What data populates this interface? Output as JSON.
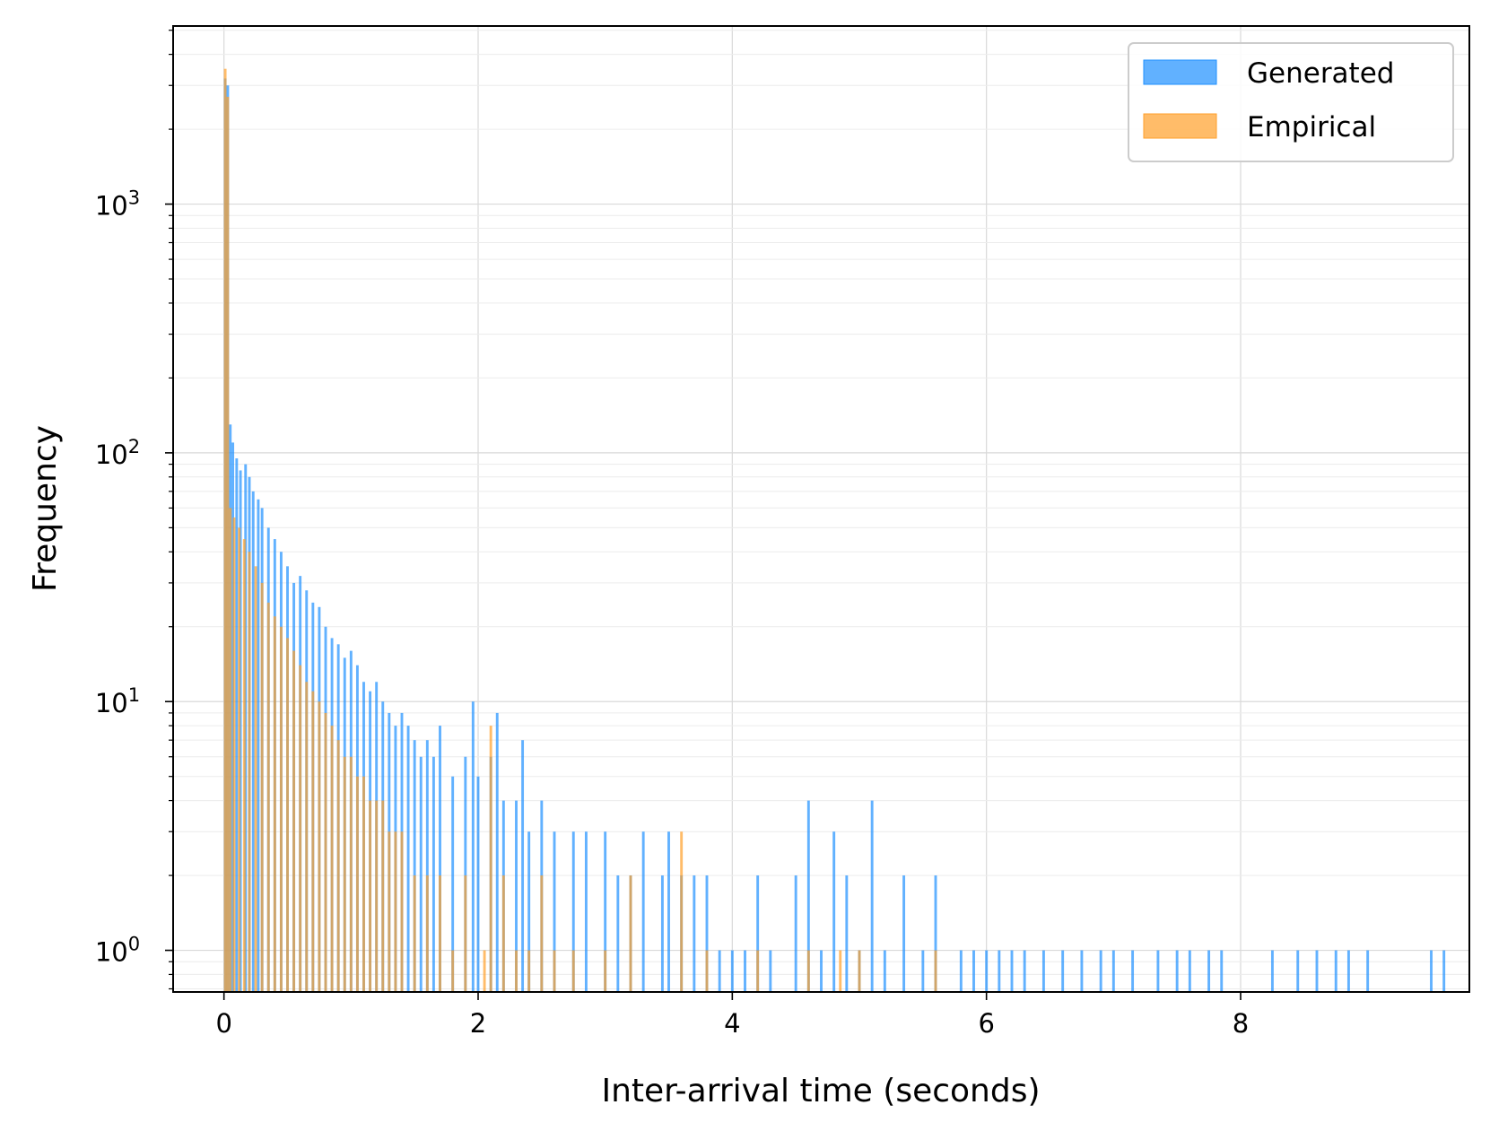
{
  "chart_data": {
    "type": "bar",
    "title": "",
    "xlabel": "Inter-arrival time (seconds)",
    "ylabel": "Frequency",
    "yscale": "log",
    "xlim": [
      -0.4,
      9.8
    ],
    "ylim": [
      0.68,
      5200
    ],
    "xticks": [
      0,
      2,
      4,
      6,
      8
    ],
    "xtick_labels": [
      "0",
      "2",
      "4",
      "6",
      "8"
    ],
    "yticks": [
      1,
      10,
      100,
      1000
    ],
    "ytick_labels": [
      {
        "base": "10",
        "exp": "0"
      },
      {
        "base": "10",
        "exp": "1"
      },
      {
        "base": "10",
        "exp": "2"
      },
      {
        "base": "10",
        "exp": "3"
      }
    ],
    "grid": true,
    "legend_position": "top-right",
    "series": [
      {
        "name": "Generated",
        "color": "#1e90ff",
        "points": [
          [
            0.01,
            3200
          ],
          [
            0.03,
            3000
          ],
          [
            0.05,
            130
          ],
          [
            0.07,
            110
          ],
          [
            0.1,
            95
          ],
          [
            0.13,
            85
          ],
          [
            0.17,
            90
          ],
          [
            0.2,
            80
          ],
          [
            0.23,
            70
          ],
          [
            0.27,
            65
          ],
          [
            0.3,
            60
          ],
          [
            0.35,
            50
          ],
          [
            0.4,
            45
          ],
          [
            0.45,
            40
          ],
          [
            0.5,
            35
          ],
          [
            0.55,
            30
          ],
          [
            0.6,
            32
          ],
          [
            0.65,
            28
          ],
          [
            0.7,
            25
          ],
          [
            0.75,
            24
          ],
          [
            0.8,
            20
          ],
          [
            0.85,
            18
          ],
          [
            0.9,
            17
          ],
          [
            0.95,
            15
          ],
          [
            1.0,
            16
          ],
          [
            1.05,
            14
          ],
          [
            1.1,
            12
          ],
          [
            1.15,
            11
          ],
          [
            1.2,
            12
          ],
          [
            1.25,
            10
          ],
          [
            1.3,
            9
          ],
          [
            1.35,
            8
          ],
          [
            1.4,
            9
          ],
          [
            1.45,
            8
          ],
          [
            1.5,
            7
          ],
          [
            1.55,
            6
          ],
          [
            1.6,
            7
          ],
          [
            1.65,
            6
          ],
          [
            1.7,
            8
          ],
          [
            1.8,
            5
          ],
          [
            1.9,
            6
          ],
          [
            1.96,
            10
          ],
          [
            2.0,
            5
          ],
          [
            2.1,
            6
          ],
          [
            2.15,
            9
          ],
          [
            2.2,
            4
          ],
          [
            2.3,
            4
          ],
          [
            2.35,
            7
          ],
          [
            2.4,
            3
          ],
          [
            2.5,
            4
          ],
          [
            2.6,
            3
          ],
          [
            2.75,
            3
          ],
          [
            2.85,
            3
          ],
          [
            3.0,
            3
          ],
          [
            3.1,
            2
          ],
          [
            3.2,
            2
          ],
          [
            3.3,
            3
          ],
          [
            3.45,
            2
          ],
          [
            3.5,
            3
          ],
          [
            3.6,
            2
          ],
          [
            3.7,
            2
          ],
          [
            3.8,
            2
          ],
          [
            3.9,
            1
          ],
          [
            4.0,
            1
          ],
          [
            4.1,
            1
          ],
          [
            4.2,
            2
          ],
          [
            4.3,
            1
          ],
          [
            4.5,
            2
          ],
          [
            4.6,
            4
          ],
          [
            4.7,
            1
          ],
          [
            4.8,
            3
          ],
          [
            4.9,
            2
          ],
          [
            5.0,
            1
          ],
          [
            5.1,
            4
          ],
          [
            5.2,
            1
          ],
          [
            5.35,
            2
          ],
          [
            5.5,
            1
          ],
          [
            5.6,
            2
          ],
          [
            5.8,
            1
          ],
          [
            5.9,
            1
          ],
          [
            6.0,
            1
          ],
          [
            6.1,
            1
          ],
          [
            6.2,
            1
          ],
          [
            6.3,
            1
          ],
          [
            6.45,
            1
          ],
          [
            6.6,
            1
          ],
          [
            6.75,
            1
          ],
          [
            6.9,
            1
          ],
          [
            7.0,
            1
          ],
          [
            7.15,
            1
          ],
          [
            7.35,
            1
          ],
          [
            7.5,
            1
          ],
          [
            7.6,
            1
          ],
          [
            7.75,
            1
          ],
          [
            7.85,
            1
          ],
          [
            8.25,
            1
          ],
          [
            8.45,
            1
          ],
          [
            8.6,
            1
          ],
          [
            8.75,
            1
          ],
          [
            8.85,
            1
          ],
          [
            9.0,
            1
          ],
          [
            9.5,
            1
          ],
          [
            9.6,
            1
          ]
        ]
      },
      {
        "name": "Empirical",
        "color": "#ff9f2a",
        "points": [
          [
            0.01,
            3500
          ],
          [
            0.03,
            2700
          ],
          [
            0.05,
            60
          ],
          [
            0.08,
            55
          ],
          [
            0.12,
            50
          ],
          [
            0.16,
            45
          ],
          [
            0.2,
            40
          ],
          [
            0.25,
            35
          ],
          [
            0.3,
            30
          ],
          [
            0.35,
            25
          ],
          [
            0.4,
            22
          ],
          [
            0.45,
            20
          ],
          [
            0.5,
            18
          ],
          [
            0.55,
            16
          ],
          [
            0.6,
            14
          ],
          [
            0.65,
            12
          ],
          [
            0.7,
            11
          ],
          [
            0.75,
            10
          ],
          [
            0.8,
            9
          ],
          [
            0.85,
            8
          ],
          [
            0.9,
            7
          ],
          [
            0.95,
            6
          ],
          [
            1.0,
            6
          ],
          [
            1.05,
            5
          ],
          [
            1.1,
            5
          ],
          [
            1.15,
            4
          ],
          [
            1.2,
            4
          ],
          [
            1.25,
            4
          ],
          [
            1.3,
            3
          ],
          [
            1.35,
            3
          ],
          [
            1.4,
            3
          ],
          [
            1.5,
            2
          ],
          [
            1.6,
            2
          ],
          [
            1.7,
            2
          ],
          [
            1.8,
            1
          ],
          [
            1.9,
            2
          ],
          [
            2.05,
            1
          ],
          [
            2.1,
            8
          ],
          [
            2.2,
            2
          ],
          [
            2.3,
            1
          ],
          [
            2.4,
            1
          ],
          [
            2.5,
            2
          ],
          [
            2.6,
            1
          ],
          [
            2.75,
            1
          ],
          [
            3.0,
            1
          ],
          [
            3.2,
            2
          ],
          [
            3.6,
            3
          ],
          [
            3.8,
            1
          ],
          [
            4.2,
            1
          ],
          [
            4.6,
            1
          ],
          [
            4.85,
            1
          ],
          [
            5.0,
            1
          ],
          [
            5.6,
            1
          ]
        ]
      }
    ]
  }
}
